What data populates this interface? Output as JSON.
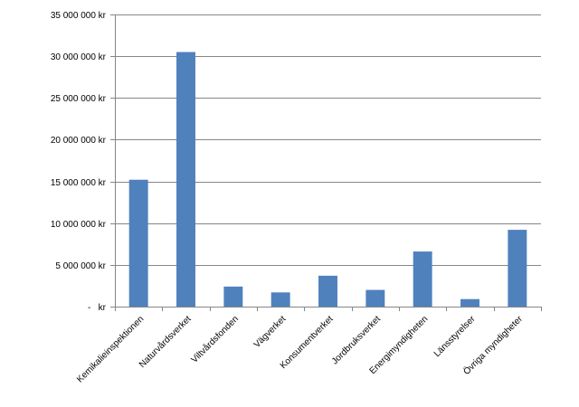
{
  "chart_data": {
    "type": "bar",
    "categories": [
      "Kemikalieinspektionen",
      "Naturvårdsverket",
      "Viltvårdsfonden",
      "Vägverket",
      "Konsumentverket",
      "Jordbruksverket",
      "Energimyndigheten",
      "Länsstyrelser",
      "Övriga myndigheter"
    ],
    "values": [
      15200000,
      30500000,
      2400000,
      1700000,
      3700000,
      2000000,
      6600000,
      900000,
      9200000
    ],
    "ylim": [
      0,
      35000000
    ],
    "y_ticks": [
      0,
      5000000,
      10000000,
      15000000,
      20000000,
      25000000,
      30000000,
      35000000
    ],
    "y_tick_labels": [
      "-   kr",
      "5 000 000 kr",
      "10 000 000 kr",
      "15 000 000 kr",
      "20 000 000 kr",
      "25 000 000 kr",
      "30 000 000 kr",
      "35 000 000 kr"
    ],
    "grid": true,
    "legend": "none",
    "bar_color": "#4F81BD"
  }
}
